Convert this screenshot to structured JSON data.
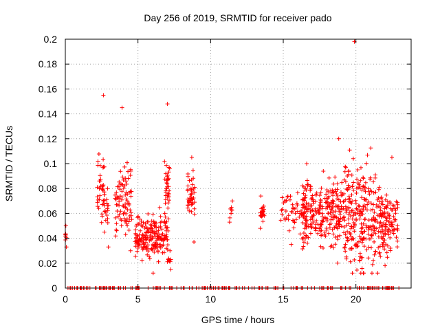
{
  "chart_data": {
    "type": "scatter",
    "title": "Day 256 of 2019, SRMTID for receiver pado",
    "xlabel": "GPS time / hours",
    "ylabel": "SRMTID / TECUs",
    "xlim": [
      0,
      23.8
    ],
    "ylim": [
      0,
      0.2
    ],
    "xticks": [
      0,
      5,
      10,
      15,
      20
    ],
    "xtick_labels": [
      "0",
      "5",
      "10",
      "15",
      "20"
    ],
    "yticks": [
      0,
      0.02,
      0.04,
      0.06,
      0.08,
      0.1,
      0.12,
      0.14,
      0.16,
      0.18,
      0.2
    ],
    "ytick_labels": [
      "0",
      "0.02",
      "0.04",
      "0.06",
      "0.08",
      "0.1",
      "0.12",
      "0.14",
      "0.16",
      "0.18",
      "0.2"
    ],
    "grid": true,
    "marker": "+",
    "series_color": "#ff0000",
    "clusters": [
      {
        "x_range": [
          0.0,
          0.1
        ],
        "y_range": [
          0.033,
          0.05
        ],
        "count": 8,
        "y_mean": 0.041
      },
      {
        "x_range": [
          2.2,
          2.7
        ],
        "y_range": [
          0.045,
          0.155
        ],
        "count": 45,
        "y_mean": 0.08
      },
      {
        "x_range": [
          2.7,
          3.0
        ],
        "y_range": [
          0.033,
          0.08
        ],
        "count": 15,
        "y_mean": 0.065
      },
      {
        "x_range": [
          3.4,
          4.6
        ],
        "y_range": [
          0.03,
          0.145
        ],
        "count": 90,
        "y_mean": 0.07
      },
      {
        "x_range": [
          4.8,
          7.1
        ],
        "y_range": [
          0.012,
          0.08
        ],
        "count": 200,
        "y_mean": 0.042
      },
      {
        "x_range": [
          6.8,
          7.2
        ],
        "y_range": [
          0.06,
          0.148
        ],
        "count": 35,
        "y_mean": 0.085
      },
      {
        "x_range": [
          7.0,
          7.3
        ],
        "y_range": [
          0.015,
          0.03
        ],
        "count": 10,
        "y_mean": 0.022
      },
      {
        "x_range": [
          8.4,
          8.9
        ],
        "y_range": [
          0.037,
          0.105
        ],
        "count": 45,
        "y_mean": 0.076
      },
      {
        "x_range": [
          11.3,
          11.5
        ],
        "y_range": [
          0.053,
          0.07
        ],
        "count": 8,
        "y_mean": 0.062
      },
      {
        "x_range": [
          13.4,
          13.7
        ],
        "y_range": [
          0.048,
          0.074
        ],
        "count": 25,
        "y_mean": 0.06
      },
      {
        "x_range": [
          14.8,
          16.8
        ],
        "y_range": [
          0.035,
          0.1
        ],
        "count": 60,
        "y_mean": 0.062
      },
      {
        "x_range": [
          16.3,
          19.2
        ],
        "y_range": [
          0.02,
          0.12
        ],
        "count": 260,
        "y_mean": 0.06
      },
      {
        "x_range": [
          19.2,
          21.7
        ],
        "y_range": [
          0.012,
          0.198
        ],
        "count": 260,
        "y_mean": 0.058
      },
      {
        "x_range": [
          21.7,
          22.9
        ],
        "y_range": [
          0.018,
          0.105
        ],
        "count": 110,
        "y_mean": 0.052
      }
    ],
    "zero_line_points": {
      "y": 0,
      "x_range": [
        0.1,
        23.0
      ],
      "count": 190
    }
  }
}
